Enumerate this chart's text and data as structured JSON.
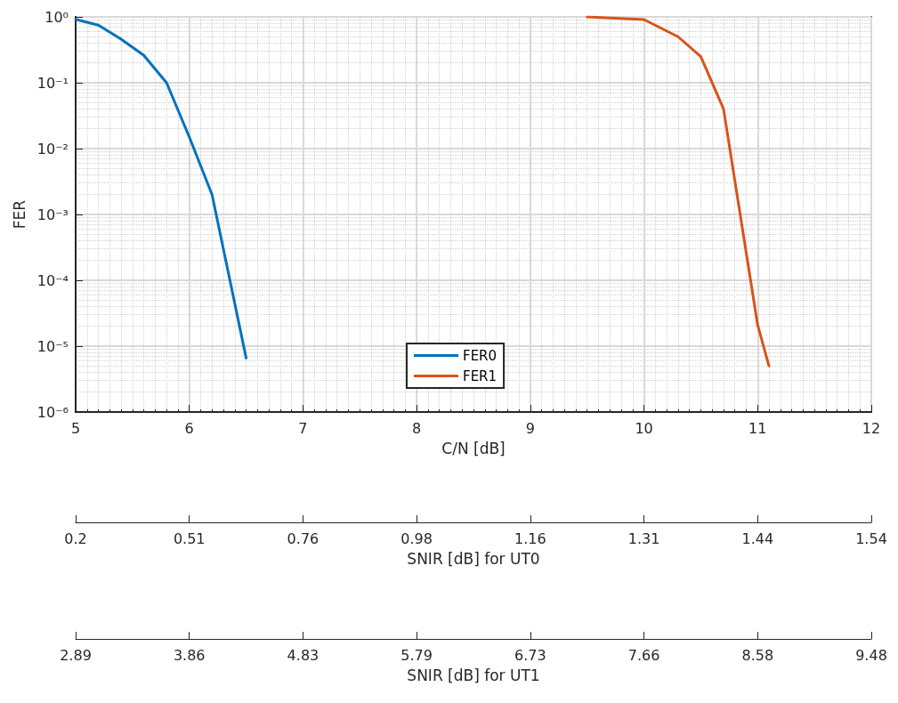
{
  "chart_data": {
    "type": "line",
    "xlabel": "C/N [dB]",
    "ylabel": "FER",
    "annotations": [
      "0.2",
      "0.51",
      "0.76",
      "0.98",
      "1.16",
      "1.31",
      "1.44",
      "1.54",
      "SNIR [dB] for UT0",
      "2.89",
      "3.86",
      "4.83",
      "5.79",
      "6.73",
      "7.66",
      "8.58",
      "9.48",
      "SNIR [dB] for UT1"
    ],
    "log": "y",
    "grid": true,
    "legend": "bottom",
    "line_style": "solid",
    "marker": "none",
    "xlim": [
      5,
      12
    ],
    "xticks": [
      5,
      6,
      7,
      8,
      9,
      10,
      11,
      12
    ],
    "ylim": [
      1e-06,
      1
    ],
    "yticks": [
      {
        "value": 1e-06,
        "label": "10⁻⁶"
      },
      {
        "value": 1e-05,
        "label": "10⁻⁵"
      },
      {
        "value": 0.0001,
        "label": "10⁻⁴"
      },
      {
        "value": 0.001,
        "label": "10⁻³"
      },
      {
        "value": 0.01,
        "label": "10⁻²"
      },
      {
        "value": 0.1,
        "label": "10⁻¹"
      },
      {
        "value": 1,
        "label": "10⁰"
      }
    ],
    "series": [
      {
        "name": "FER0",
        "color": "#0072bd",
        "x": [
          5,
          5.2,
          5.4,
          5.6,
          5.8,
          6,
          6.2,
          6.5
        ],
        "values": [
          0.92,
          0.75,
          0.46,
          0.26,
          0.1,
          0.015,
          0.002,
          6.6e-06
        ]
      },
      {
        "name": "FER1",
        "color": "#d95319",
        "x": [
          9.5,
          10,
          10.3,
          10.5,
          10.7,
          11,
          11.1
        ],
        "values": [
          1,
          0.91,
          0.5,
          0.25,
          0.04,
          2.1e-05,
          5e-06
        ]
      }
    ]
  }
}
